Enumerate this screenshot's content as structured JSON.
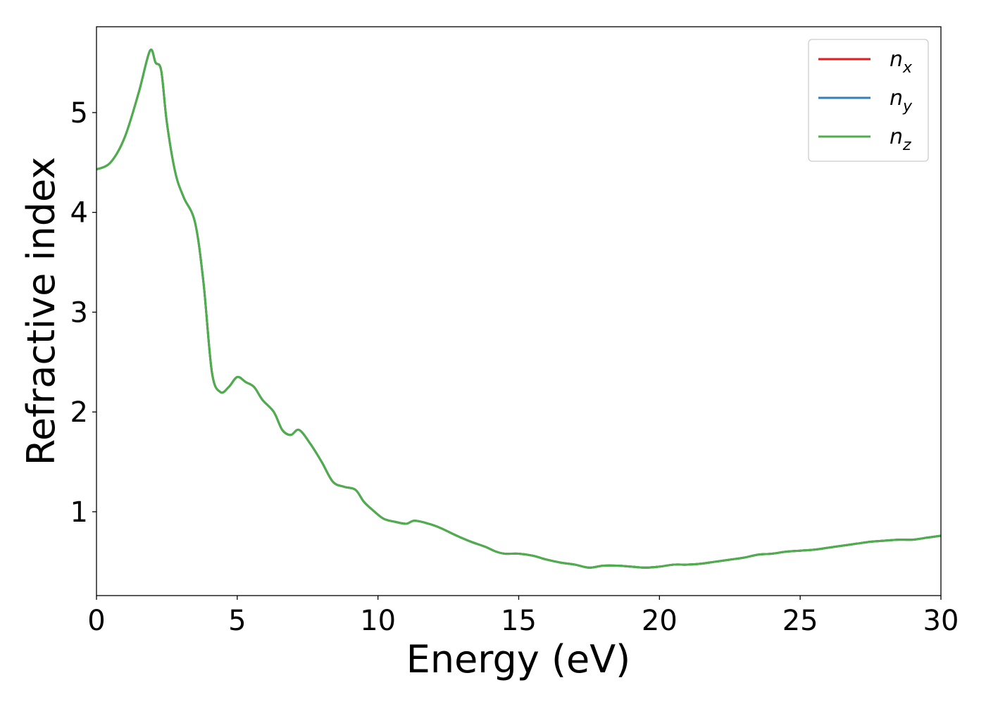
{
  "chart_data": {
    "type": "line",
    "xlabel": "Energy (eV)",
    "ylabel": "Refractive index",
    "xlim": [
      0,
      30
    ],
    "ylim": [
      0.16,
      5.86
    ],
    "x_ticks": [
      0,
      5,
      10,
      15,
      20,
      25,
      30
    ],
    "y_ticks": [
      1,
      2,
      3,
      4,
      5
    ],
    "grid": false,
    "legend_position": "top-right",
    "series": [
      {
        "name": "n_x",
        "label_base": "n",
        "label_sub": "x",
        "color": "#e41a1c",
        "x": [
          0,
          0.5,
          1.0,
          1.5,
          1.9,
          2.1,
          2.3,
          2.5,
          2.8,
          3.1,
          3.5,
          3.8,
          4.1,
          4.4,
          4.7,
          5.0,
          5.3,
          5.6,
          5.9,
          6.3,
          6.6,
          6.9,
          7.2,
          7.6,
          8.0,
          8.4,
          8.8,
          9.2,
          9.5,
          9.8,
          10.2,
          10.6,
          11.0,
          11.3,
          11.8,
          12.2,
          12.8,
          13.3,
          13.8,
          14.2,
          14.5,
          15.0,
          15.5,
          16.0,
          16.5,
          17.0,
          17.5,
          18.0,
          18.5,
          19.0,
          19.5,
          20.0,
          20.5,
          21.0,
          21.5,
          22.0,
          22.5,
          23.0,
          23.5,
          24.0,
          24.5,
          25.0,
          25.5,
          26.0,
          26.5,
          27.0,
          27.5,
          28.0,
          28.5,
          29.0,
          29.5,
          30.0
        ],
        "y": [
          4.43,
          4.5,
          4.75,
          5.2,
          5.62,
          5.5,
          5.42,
          4.9,
          4.4,
          4.15,
          3.9,
          3.3,
          2.4,
          2.2,
          2.25,
          2.35,
          2.3,
          2.25,
          2.12,
          2.0,
          1.82,
          1.77,
          1.82,
          1.68,
          1.5,
          1.3,
          1.25,
          1.22,
          1.1,
          1.02,
          0.93,
          0.9,
          0.88,
          0.91,
          0.88,
          0.84,
          0.76,
          0.7,
          0.65,
          0.6,
          0.58,
          0.58,
          0.56,
          0.52,
          0.49,
          0.47,
          0.44,
          0.46,
          0.46,
          0.45,
          0.44,
          0.45,
          0.47,
          0.47,
          0.48,
          0.5,
          0.52,
          0.54,
          0.57,
          0.58,
          0.6,
          0.61,
          0.62,
          0.64,
          0.66,
          0.68,
          0.7,
          0.71,
          0.72,
          0.72,
          0.74,
          0.76
        ]
      },
      {
        "name": "n_y",
        "label_base": "n",
        "label_sub": "y",
        "color": "#377eb8",
        "x": [
          0,
          0.5,
          1.0,
          1.5,
          1.9,
          2.1,
          2.3,
          2.5,
          2.8,
          3.1,
          3.5,
          3.8,
          4.1,
          4.4,
          4.7,
          5.0,
          5.3,
          5.6,
          5.9,
          6.3,
          6.6,
          6.9,
          7.2,
          7.6,
          8.0,
          8.4,
          8.8,
          9.2,
          9.5,
          9.8,
          10.2,
          10.6,
          11.0,
          11.3,
          11.8,
          12.2,
          12.8,
          13.3,
          13.8,
          14.2,
          14.5,
          15.0,
          15.5,
          16.0,
          16.5,
          17.0,
          17.5,
          18.0,
          18.5,
          19.0,
          19.5,
          20.0,
          20.5,
          21.0,
          21.5,
          22.0,
          22.5,
          23.0,
          23.5,
          24.0,
          24.5,
          25.0,
          25.5,
          26.0,
          26.5,
          27.0,
          27.5,
          28.0,
          28.5,
          29.0,
          29.5,
          30.0
        ],
        "y": [
          4.43,
          4.5,
          4.75,
          5.2,
          5.62,
          5.5,
          5.42,
          4.9,
          4.4,
          4.15,
          3.9,
          3.3,
          2.4,
          2.2,
          2.25,
          2.35,
          2.3,
          2.25,
          2.12,
          2.0,
          1.82,
          1.77,
          1.82,
          1.68,
          1.5,
          1.3,
          1.25,
          1.22,
          1.1,
          1.02,
          0.93,
          0.9,
          0.88,
          0.91,
          0.88,
          0.84,
          0.76,
          0.7,
          0.65,
          0.6,
          0.58,
          0.58,
          0.56,
          0.52,
          0.49,
          0.47,
          0.44,
          0.46,
          0.46,
          0.45,
          0.44,
          0.45,
          0.47,
          0.47,
          0.48,
          0.5,
          0.52,
          0.54,
          0.57,
          0.58,
          0.6,
          0.61,
          0.62,
          0.64,
          0.66,
          0.68,
          0.7,
          0.71,
          0.72,
          0.72,
          0.74,
          0.76
        ]
      },
      {
        "name": "n_z",
        "label_base": "n",
        "label_sub": "z",
        "color": "#4daf4a",
        "x": [
          0,
          0.5,
          1.0,
          1.5,
          1.9,
          2.1,
          2.3,
          2.5,
          2.8,
          3.1,
          3.5,
          3.8,
          4.1,
          4.4,
          4.7,
          5.0,
          5.3,
          5.6,
          5.9,
          6.3,
          6.6,
          6.9,
          7.2,
          7.6,
          8.0,
          8.4,
          8.8,
          9.2,
          9.5,
          9.8,
          10.2,
          10.6,
          11.0,
          11.3,
          11.8,
          12.2,
          12.8,
          13.3,
          13.8,
          14.2,
          14.5,
          15.0,
          15.5,
          16.0,
          16.5,
          17.0,
          17.5,
          18.0,
          18.5,
          19.0,
          19.5,
          20.0,
          20.5,
          21.0,
          21.5,
          22.0,
          22.5,
          23.0,
          23.5,
          24.0,
          24.5,
          25.0,
          25.5,
          26.0,
          26.5,
          27.0,
          27.5,
          28.0,
          28.5,
          29.0,
          29.5,
          30.0
        ],
        "y": [
          4.43,
          4.5,
          4.75,
          5.2,
          5.62,
          5.5,
          5.42,
          4.9,
          4.4,
          4.15,
          3.9,
          3.3,
          2.4,
          2.2,
          2.25,
          2.35,
          2.3,
          2.25,
          2.12,
          2.0,
          1.82,
          1.77,
          1.82,
          1.68,
          1.5,
          1.3,
          1.25,
          1.22,
          1.1,
          1.02,
          0.93,
          0.9,
          0.88,
          0.91,
          0.88,
          0.84,
          0.76,
          0.7,
          0.65,
          0.6,
          0.58,
          0.58,
          0.56,
          0.52,
          0.49,
          0.47,
          0.44,
          0.46,
          0.46,
          0.45,
          0.44,
          0.45,
          0.47,
          0.47,
          0.48,
          0.5,
          0.52,
          0.54,
          0.57,
          0.58,
          0.6,
          0.61,
          0.62,
          0.64,
          0.66,
          0.68,
          0.7,
          0.71,
          0.72,
          0.72,
          0.74,
          0.76
        ]
      }
    ]
  }
}
